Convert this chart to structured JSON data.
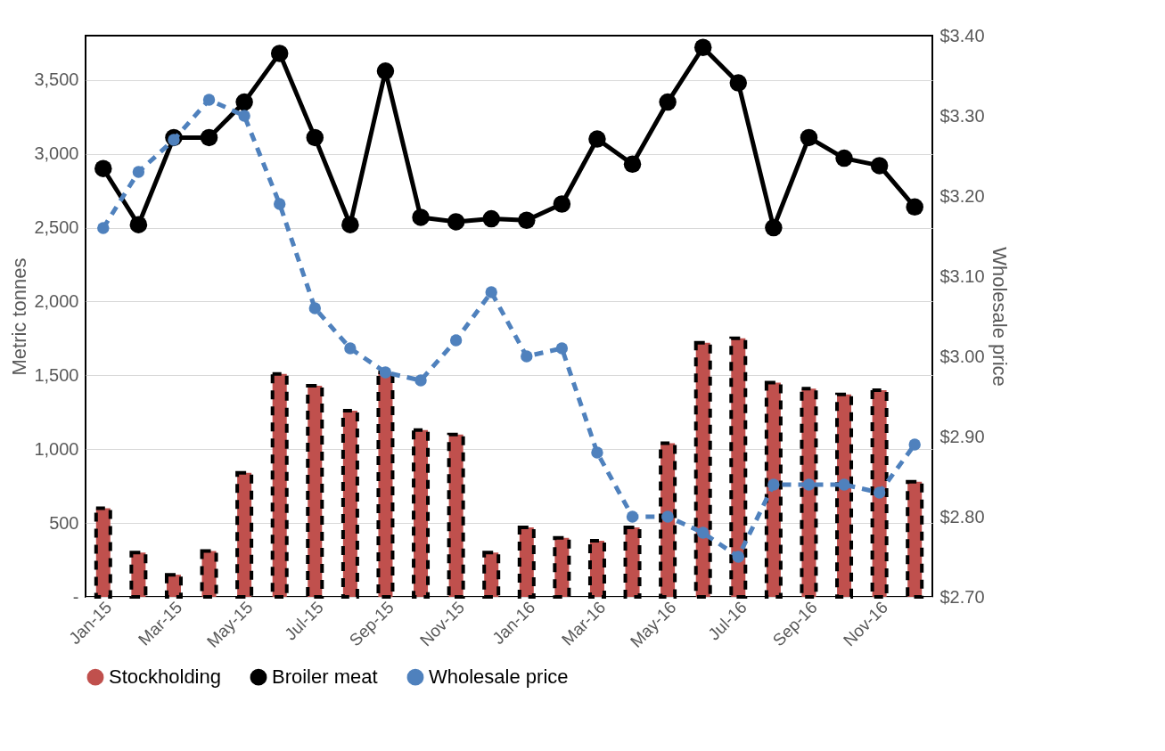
{
  "chart_data": {
    "type": "bar",
    "categories": [
      "Jan-15",
      null,
      "Mar-15",
      null,
      "May-15",
      null,
      "Jul-15",
      null,
      "Sep-15",
      null,
      "Nov-15",
      null,
      "Jan-16",
      null,
      "Mar-16",
      null,
      "May-16",
      null,
      "Jul-16",
      null,
      "Sep-16",
      null,
      "Nov-16",
      null
    ],
    "ylabel": "Metric tonnes",
    "y2label": "Wholesale price",
    "ylim": [
      0,
      3800
    ],
    "yticks": [
      {
        "value": 0,
        "label": "-"
      },
      500,
      {
        "value": 1000,
        "label": "1,000"
      },
      {
        "value": 1500,
        "label": "1,500"
      },
      {
        "value": 2000,
        "label": "2,000"
      },
      {
        "value": 2500,
        "label": "2,500"
      },
      {
        "value": 3000,
        "label": "3,000"
      },
      {
        "value": 3500,
        "label": "3,500"
      }
    ],
    "y2lim": [
      2.7,
      3.4
    ],
    "y2ticks": [
      {
        "value": 2.7,
        "label": "$2.70"
      },
      {
        "value": 2.8,
        "label": "$2.80"
      },
      {
        "value": 2.9,
        "label": "$2.90"
      },
      {
        "value": 3.0,
        "label": "$3.00"
      },
      {
        "value": 3.1,
        "label": "$3.10"
      },
      {
        "value": 3.2,
        "label": "$3.20"
      },
      {
        "value": 3.3,
        "label": "$3.30"
      },
      {
        "value": 3.4,
        "label": "$3.40"
      }
    ],
    "grid": "y",
    "legend": "bottom",
    "marker": "circle",
    "series": [
      {
        "name": "Stockholding",
        "color": "#c0504d",
        "line_style": "dashed",
        "values": [
          600,
          300,
          150,
          310,
          840,
          1510,
          1430,
          1260,
          1520,
          1130,
          1100,
          300,
          470,
          400,
          380,
          470,
          1040,
          1720,
          1750,
          1450,
          1410,
          1370,
          1400,
          780
        ]
      },
      {
        "name": "Broiler meat",
        "type": "line",
        "color": "#000000",
        "line_style": "solid",
        "values": [
          2900,
          2520,
          3110,
          3110,
          3350,
          3680,
          3110,
          2520,
          3560,
          2570,
          2540,
          2560,
          2550,
          2660,
          3100,
          2930,
          3350,
          3720,
          3480,
          2500,
          3110,
          2970,
          2920,
          2640
        ]
      },
      {
        "name": "Wholesale price",
        "type": "line",
        "axis": "y2",
        "color": "#4f81bd",
        "line_style": "dashed",
        "values": [
          3.16,
          3.23,
          3.27,
          3.32,
          3.3,
          3.19,
          3.06,
          3.01,
          2.98,
          2.97,
          3.02,
          3.08,
          3.0,
          3.01,
          2.88,
          2.8,
          2.8,
          2.78,
          2.75,
          2.84,
          2.84,
          2.84,
          2.83,
          2.89
        ]
      }
    ]
  }
}
